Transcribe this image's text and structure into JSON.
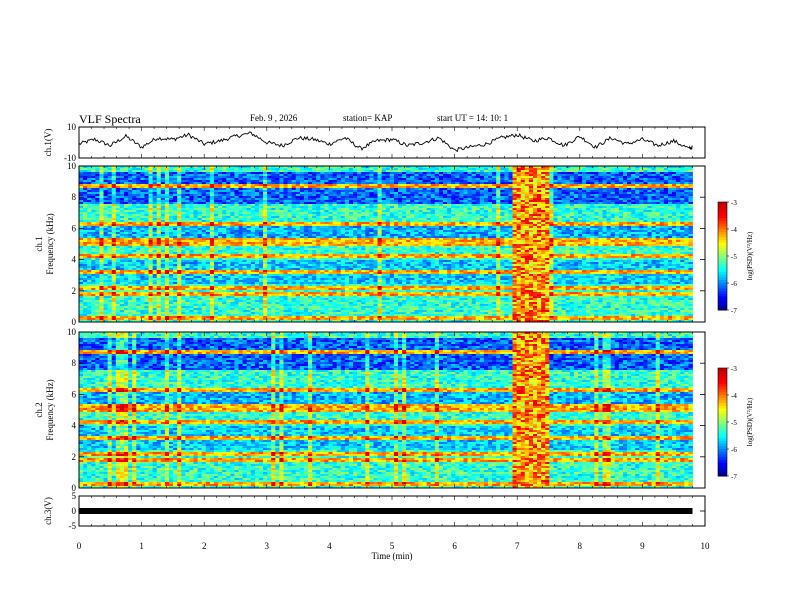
{
  "header": {
    "title": "VLF Spectra",
    "date": "Feb. 9 , 2026",
    "station": "station= KAP",
    "start": "start  UT =   14: 10: 1"
  },
  "colors": {
    "waveform": "#000000",
    "colormap": [
      "#000080",
      "#0000ff",
      "#0080ff",
      "#00ffff",
      "#00ff80",
      "#00ff00",
      "#80ff00",
      "#ffff00",
      "#ff8000",
      "#ff0000",
      "#ffffff"
    ]
  },
  "chart_data": [
    {
      "type": "line",
      "name": "ch1-waveform",
      "ylabel": "ch.1(V)",
      "ylim": [
        -10,
        10
      ],
      "yticks": [
        "10",
        "-10"
      ],
      "xlim": [
        0,
        10
      ],
      "series": [
        {
          "name": "ch.1",
          "x": [
            0,
            0.25,
            0.5,
            0.75,
            1,
            1.25,
            1.5,
            1.75,
            2,
            2.25,
            2.5,
            2.75,
            3,
            3.25,
            3.5,
            3.75,
            4,
            4.25,
            4.5,
            4.75,
            5,
            5.25,
            5.5,
            5.75,
            6,
            6.25,
            6.5,
            6.75,
            7,
            7.25,
            7.5,
            7.75,
            8,
            8.25,
            8.5,
            8.75,
            9,
            9.25,
            9.5,
            9.75,
            9.8
          ],
          "y": [
            -1,
            2,
            -2,
            4,
            -3,
            3,
            2,
            5,
            -1,
            1,
            4,
            6,
            0,
            -2,
            3,
            2,
            -1,
            3,
            -4,
            1,
            2,
            -2,
            0,
            3,
            -5,
            -3,
            -1,
            3,
            5,
            1,
            3,
            -2,
            4,
            -3,
            3,
            -1,
            2,
            -2,
            1,
            -4,
            -3
          ]
        }
      ]
    },
    {
      "type": "heatmap",
      "name": "ch1-spectrogram",
      "ylabel": "ch.1\nFrequency (kHz)",
      "ylim": [
        0,
        10
      ],
      "yticks": [
        "0",
        "2",
        "4",
        "6",
        "8",
        "10"
      ],
      "xlim": [
        0,
        9.8
      ],
      "colorbar": {
        "label": "log(PSD)(V²/Hz)",
        "range": [
          -7,
          -3
        ],
        "ticks": [
          "-3",
          "-4",
          "-5",
          "-6",
          "-7"
        ]
      },
      "bands_khz": [
        0.3,
        1.8,
        2.2,
        3.2,
        4.2,
        5.0,
        5.3,
        6.3,
        8.7
      ],
      "burst_min": [
        6.9,
        7.5
      ]
    },
    {
      "type": "heatmap",
      "name": "ch2-spectrogram",
      "ylabel": "ch.2\nFrequency (kHz)",
      "ylim": [
        0,
        10
      ],
      "yticks": [
        "0",
        "2",
        "4",
        "6",
        "8",
        "10"
      ],
      "xlim": [
        0,
        9.8
      ],
      "colorbar": {
        "label": "log(PSD)(V²/Hz)",
        "range": [
          -7,
          -3
        ],
        "ticks": [
          "-3",
          "-4",
          "-5",
          "-6",
          "-7"
        ]
      },
      "bands_khz": [
        0.3,
        1.8,
        2.2,
        3.2,
        4.2,
        5.0,
        5.3,
        6.3,
        8.7
      ],
      "burst_min": [
        6.9,
        7.5
      ]
    },
    {
      "type": "line",
      "name": "ch3-waveform",
      "ylabel": "ch.3(V)",
      "ylim": [
        -5,
        5
      ],
      "yticks": [
        "5",
        "0",
        "-5"
      ],
      "xlim": [
        0,
        10
      ],
      "series": [
        {
          "name": "ch.3",
          "x": [
            0,
            9.8
          ],
          "y": [
            0,
            0
          ]
        }
      ]
    }
  ],
  "x_axis": {
    "label": "Time (min)",
    "ticks": [
      "0",
      "1",
      "2",
      "3",
      "4",
      "5",
      "6",
      "7",
      "8",
      "9",
      "10"
    ]
  }
}
